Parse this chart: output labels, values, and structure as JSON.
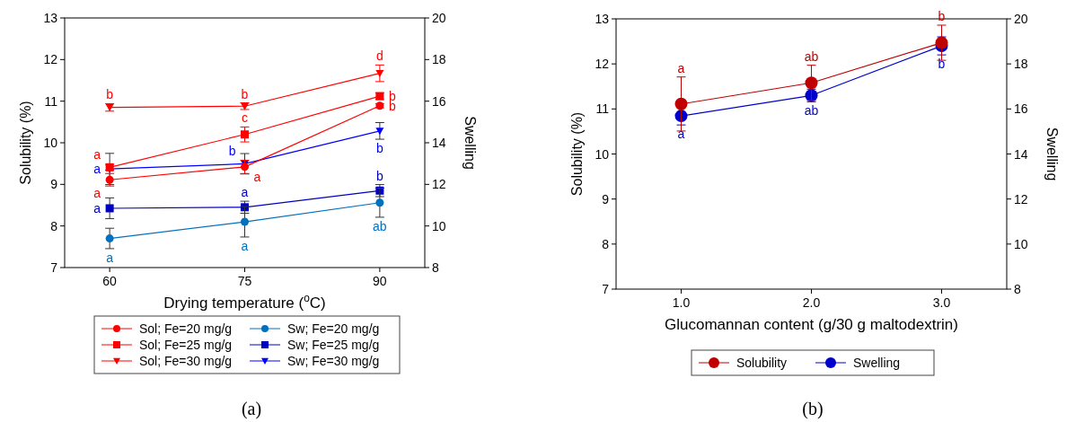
{
  "chart_data": [
    {
      "type": "line",
      "xlabel": "Drying temperature ($^{o}$C)",
      "ylabel": "Solubility (%)",
      "y2label": "Swelling",
      "x": [
        60,
        75,
        90
      ],
      "xlim": [
        55,
        95
      ],
      "xticks": [
        60,
        75,
        90
      ],
      "ylim": [
        7,
        13
      ],
      "yticks": [
        7,
        8,
        9,
        10,
        11,
        12,
        13
      ],
      "y2lim": [
        8,
        20
      ],
      "y2ticks": [
        8,
        10,
        12,
        14,
        16,
        18,
        20
      ],
      "legend": "bottom",
      "series": [
        {
          "name": "Sol; Fe=20 mg/g",
          "color": "#ff0000",
          "marker": "circle",
          "values": [
            9.11,
            9.42,
            10.89
          ],
          "errors": [
            0.15,
            0.16,
            0.05
          ],
          "value_labels": [
            "a",
            "a",
            "b"
          ]
        },
        {
          "name": "Sol; Fe=25 mg/g",
          "color": "#ff0000",
          "marker": "square",
          "values": [
            9.41,
            10.2,
            11.12
          ],
          "errors": [
            0.07,
            0.18,
            0.08
          ],
          "value_labels": [
            "a",
            "c",
            "b"
          ]
        },
        {
          "name": "Sol; Fe=30 mg/g",
          "color": "#ff0000",
          "marker": "triangle",
          "values": [
            10.85,
            10.88,
            11.67
          ],
          "errors": [
            0.09,
            0.08,
            0.2
          ],
          "value_labels": [
            "b",
            "b",
            "d"
          ]
        },
        {
          "name": "Sw; Fe=20 mg/g",
          "color": "#0070c0",
          "marker": "circle",
          "axis": "y2",
          "values": [
            9.4,
            10.2,
            11.12
          ],
          "errors": [
            0.49,
            0.73,
            0.7
          ],
          "value_labels": [
            "a",
            "a",
            "ab"
          ]
        },
        {
          "name": "Sw; Fe=25 mg/g",
          "color": "#0000c0",
          "marker": "square",
          "axis": "y2",
          "values": [
            10.85,
            10.9,
            11.7
          ],
          "errors": [
            0.5,
            0.29,
            0.29
          ],
          "value_labels": [
            "a",
            "a",
            "b"
          ]
        },
        {
          "name": "Sw; Fe=30 mg/g",
          "color": "#0000ff",
          "marker": "triangle",
          "axis": "y2",
          "values": [
            12.74,
            12.99,
            14.57
          ],
          "errors": [
            0.75,
            0.49,
            0.4
          ],
          "value_labels": [
            "a",
            "b",
            "b"
          ]
        }
      ],
      "annotations": [
        "(a)"
      ]
    },
    {
      "type": "line",
      "xlabel": "Glucomannan content (g/30 g maltodextrin)",
      "ylabel": "Solubility (%)",
      "y2label": "Swelling",
      "x": [
        1,
        2,
        3
      ],
      "xlim": [
        0.5,
        3.5
      ],
      "xticks": [
        {
          "value": 1,
          "label": "1.0"
        },
        {
          "value": 2,
          "label": "2.0"
        },
        {
          "value": 3,
          "label": "3.0"
        }
      ],
      "ylim": [
        7,
        13
      ],
      "yticks": [
        7,
        8,
        9,
        10,
        11,
        12,
        13
      ],
      "y2lim": [
        8,
        20
      ],
      "y2ticks": [
        8,
        10,
        12,
        14,
        16,
        18,
        20
      ],
      "legend": "bottom",
      "series": [
        {
          "name": "Solubility",
          "color": "#c00000",
          "marker": "circle",
          "values": [
            11.11,
            11.58,
            12.47
          ],
          "errors": [
            0.6,
            0.39,
            0.39
          ],
          "value_labels": [
            "a",
            "ab",
            "b"
          ]
        },
        {
          "name": "Swelling",
          "color": "#0000cc",
          "marker": "circle",
          "axis": "y2",
          "values": [
            15.69,
            16.6,
            18.8
          ],
          "errors": [
            0.4,
            0.28,
            0.4
          ],
          "value_labels": [
            "a",
            "ab",
            "b"
          ]
        }
      ],
      "annotations": [
        "(b)"
      ]
    }
  ]
}
